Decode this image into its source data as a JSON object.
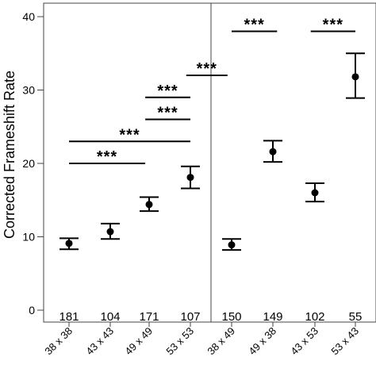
{
  "chart_data": {
    "type": "scatter",
    "ylabel": "Corrected Frameshift Rate",
    "ylim": [
      0,
      42
    ],
    "yticks": [
      0,
      10,
      20,
      30,
      40
    ],
    "grid": false,
    "panels": [
      {
        "categories": [
          "38 x 38",
          "43 x 43",
          "49 x 49",
          "53 x 53"
        ],
        "values": [
          9.1,
          10.7,
          14.4,
          18.1
        ],
        "err_low": [
          8.3,
          9.7,
          13.5,
          16.6
        ],
        "err_high": [
          9.8,
          11.8,
          15.4,
          19.6
        ],
        "counts": [
          "181",
          "104",
          "171",
          "107"
        ],
        "significance": [
          {
            "from": 0,
            "to": 1.9,
            "y": 20,
            "label": "***"
          },
          {
            "from": 0,
            "to": 3,
            "y": 23,
            "label": "***"
          },
          {
            "from": 1.9,
            "to": 3,
            "y": 26,
            "label": "***"
          },
          {
            "from": 1.9,
            "to": 3,
            "y": 29,
            "label": "***"
          },
          {
            "from": 2.9,
            "to": 3.9,
            "y": 32,
            "label": "***"
          }
        ]
      },
      {
        "categories": [
          "38 x 49",
          "49 x 38",
          "43 x 53",
          "53 x 43"
        ],
        "values": [
          8.9,
          21.6,
          16.0,
          31.8
        ],
        "err_low": [
          8.2,
          20.2,
          14.8,
          28.9
        ],
        "err_high": [
          9.7,
          23.1,
          17.3,
          35.0
        ],
        "counts": [
          "150",
          "149",
          "102",
          "55"
        ],
        "significance": [
          {
            "from": 0,
            "to": 1.1,
            "y": 38,
            "label": "***"
          },
          {
            "from": 1.9,
            "to": 3,
            "y": 38,
            "label": "***"
          }
        ]
      }
    ]
  }
}
